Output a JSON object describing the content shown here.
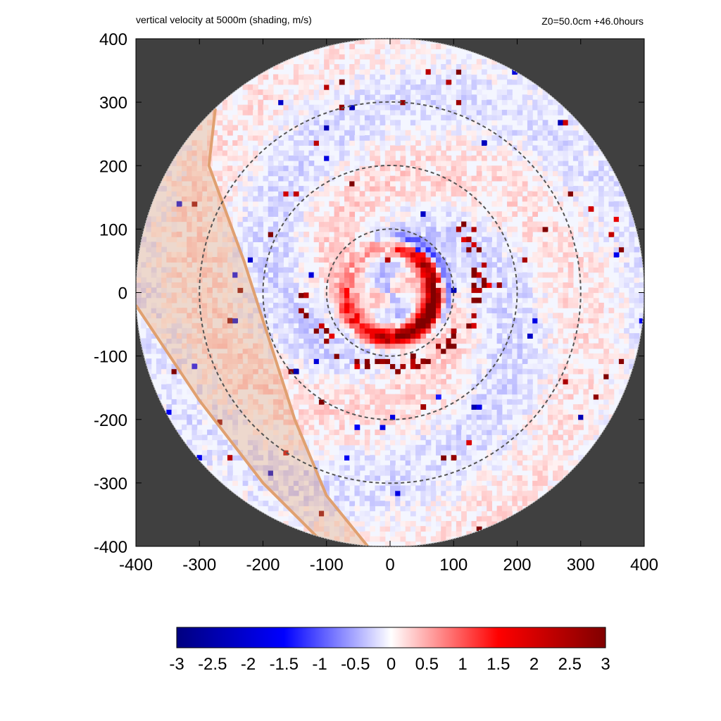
{
  "header": {
    "title": "vertical velocity at 5000m (shading, m/s)",
    "annotation": "Z0=50.0cm  +46.0hours"
  },
  "chart_data": {
    "type": "heatmap",
    "title": "vertical velocity at 5000m (shading, m/s)",
    "subtitle": "Z0=50.0cm  +46.0hours",
    "xlabel": "",
    "ylabel": "",
    "xlim": [
      -400,
      400
    ],
    "ylim": [
      -400,
      400
    ],
    "x_ticks": [
      -400,
      -300,
      -200,
      -100,
      0,
      100,
      200,
      300,
      400
    ],
    "y_ticks": [
      400,
      300,
      200,
      100,
      0,
      -100,
      -200,
      -300,
      -400
    ],
    "domain_radius": 400,
    "range_rings": [
      100,
      200,
      300
    ],
    "colorbar": {
      "min": -3,
      "max": 3,
      "ticks": [
        "-3",
        "-2.5",
        "-2",
        "-1.5",
        "-1",
        "-0.5",
        "0",
        "0.5",
        "1",
        "1.5",
        "2",
        "2.5",
        "3"
      ],
      "colors": [
        "#000080",
        "#0000ff",
        "#ffffff",
        "#ff0000",
        "#800000"
      ]
    },
    "outside_domain_color": "#404040",
    "eyewall": {
      "radius_approx": 70,
      "w_approx": 3
    },
    "shaded_band": {
      "color": "#e0a070",
      "left_edge": [
        [
          -275,
          290
        ],
        [
          -285,
          200
        ],
        [
          -230,
          50
        ],
        [
          -150,
          -200
        ],
        [
          -100,
          -320
        ],
        [
          -35,
          -400
        ]
      ],
      "right_edge": [
        [
          -400,
          -20
        ],
        [
          -300,
          -170
        ],
        [
          -200,
          -300
        ],
        [
          -100,
          -400
        ]
      ]
    }
  }
}
